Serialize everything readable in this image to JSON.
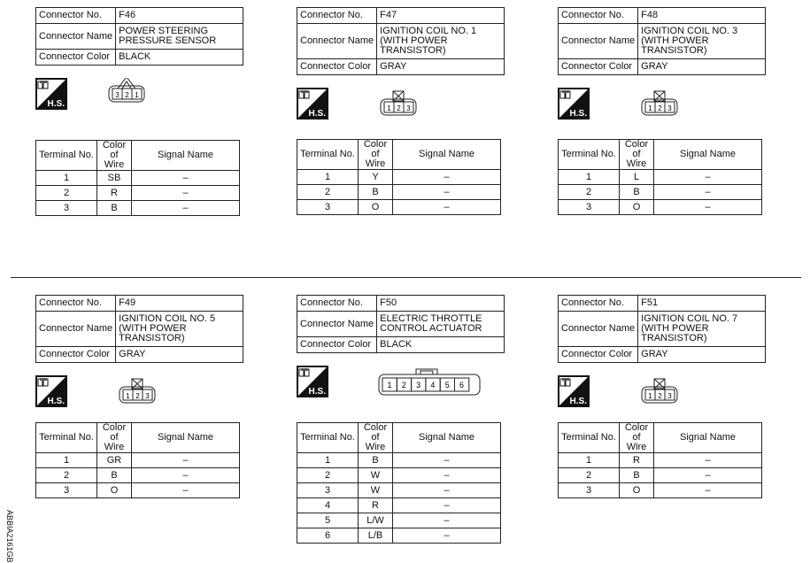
{
  "labels": {
    "connector_no": "Connector No.",
    "connector_name": "Connector Name",
    "connector_color": "Connector Color",
    "terminal_no": "Terminal No.",
    "color_of_wire": "Color of Wire",
    "signal_name": "Signal Name",
    "hs_icon_text": "H.S."
  },
  "connectors": [
    {
      "no": "F46",
      "name": "POWER STEERING PRESSURE SENSOR",
      "color": "BLACK",
      "shape": "triangle-3",
      "pins": [
        "3",
        "2",
        "1"
      ],
      "terminals": [
        {
          "t": "1",
          "w": "SB",
          "s": "–"
        },
        {
          "t": "2",
          "w": "R",
          "s": "–"
        },
        {
          "t": "3",
          "w": "B",
          "s": "–"
        }
      ]
    },
    {
      "no": "F47",
      "name": "IGNITION COIL NO. 1 (WITH POWER TRANSISTOR)",
      "color": "GRAY",
      "shape": "box-3",
      "pins": [
        "1",
        "2",
        "3"
      ],
      "terminals": [
        {
          "t": "1",
          "w": "Y",
          "s": "–"
        },
        {
          "t": "2",
          "w": "B",
          "s": "–"
        },
        {
          "t": "3",
          "w": "O",
          "s": "–"
        }
      ]
    },
    {
      "no": "F48",
      "name": "IGNITION COIL NO. 3 (WITH POWER TRANSISTOR)",
      "color": "GRAY",
      "shape": "box-3",
      "pins": [
        "1",
        "2",
        "3"
      ],
      "terminals": [
        {
          "t": "1",
          "w": "L",
          "s": "–"
        },
        {
          "t": "2",
          "w": "B",
          "s": "–"
        },
        {
          "t": "3",
          "w": "O",
          "s": "–"
        }
      ]
    },
    {
      "no": "F49",
      "name": "IGNITION COIL NO. 5 (WITH POWER TRANSISTOR)",
      "color": "GRAY",
      "shape": "box-3",
      "pins": [
        "1",
        "2",
        "3"
      ],
      "terminals": [
        {
          "t": "1",
          "w": "GR",
          "s": "–"
        },
        {
          "t": "2",
          "w": "B",
          "s": "–"
        },
        {
          "t": "3",
          "w": "O",
          "s": "–"
        }
      ]
    },
    {
      "no": "F50",
      "name": "ELECTRIC THROTTLE CONTROL ACTUATOR",
      "color": "BLACK",
      "shape": "tab-6",
      "pins": [
        "1",
        "2",
        "3",
        "4",
        "5",
        "6"
      ],
      "terminals": [
        {
          "t": "1",
          "w": "B",
          "s": "–"
        },
        {
          "t": "2",
          "w": "W",
          "s": "–"
        },
        {
          "t": "3",
          "w": "W",
          "s": "–"
        },
        {
          "t": "4",
          "w": "R",
          "s": "–"
        },
        {
          "t": "5",
          "w": "L/W",
          "s": "–"
        },
        {
          "t": "6",
          "w": "L/B",
          "s": "–"
        }
      ]
    },
    {
      "no": "F51",
      "name": "IGNITION COIL NO. 7 (WITH POWER TRANSISTOR)",
      "color": "GRAY",
      "shape": "box-3",
      "pins": [
        "1",
        "2",
        "3"
      ],
      "terminals": [
        {
          "t": "1",
          "w": "R",
          "s": "–"
        },
        {
          "t": "2",
          "w": "B",
          "s": "–"
        },
        {
          "t": "3",
          "w": "O",
          "s": "–"
        }
      ]
    }
  ],
  "figure_id": "ABBIA2161GB"
}
